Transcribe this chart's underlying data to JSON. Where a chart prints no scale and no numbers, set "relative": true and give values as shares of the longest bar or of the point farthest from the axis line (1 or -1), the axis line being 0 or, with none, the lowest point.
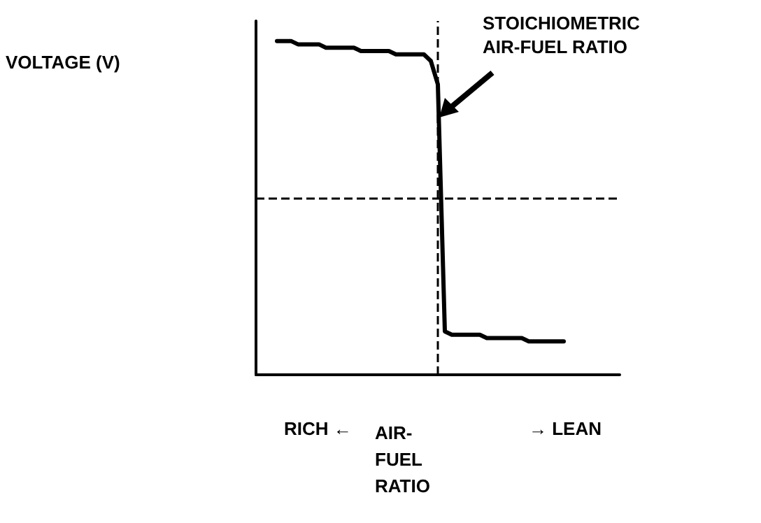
{
  "chart_data": {
    "type": "line",
    "relative": true,
    "xlabel": "AIR- FUEL RATIO",
    "annotations": [
      "STOICHIOMETRIC AIR-FUEL RATIO",
      "RICH ←",
      "→ LEAN",
      "VOLTAGE (V)"
    ],
    "categories": [
      null,
      null,
      null,
      null,
      null,
      null,
      null,
      null,
      null,
      null,
      null,
      null,
      null,
      null,
      null,
      null,
      null,
      null,
      null,
      null,
      null,
      null,
      null,
      null,
      null,
      null,
      null,
      null,
      null,
      null,
      null,
      null,
      null,
      null,
      null,
      null,
      null,
      null,
      null,
      null,
      null,
      null,
      null,
      null,
      null,
      null,
      null,
      null,
      null,
      null,
      null,
      null,
      null
    ],
    "series": [
      {
        "color": "#000000",
        "values": [
          null,
          null,
          null,
          1.0,
          1.0,
          1.0,
          0.99,
          0.99,
          0.99,
          0.99,
          0.98,
          0.98,
          0.98,
          0.98,
          0.98,
          0.97,
          0.97,
          0.97,
          0.97,
          0.97,
          0.96,
          0.96,
          0.96,
          0.96,
          0.96,
          0.94,
          0.87,
          0.13,
          0.12,
          0.12,
          0.12,
          0.12,
          0.12,
          0.11,
          0.11,
          0.11,
          0.11,
          0.11,
          0.11,
          0.1,
          0.1,
          0.1,
          0.1,
          0.1,
          0.1,
          null,
          null,
          null,
          null,
          null,
          null,
          null,
          null
        ]
      }
    ],
    "ref_lines": [
      {
        "axis": "y",
        "value": 0.525,
        "line_style": "dashed",
        "color": "#000000"
      }
    ],
    "marker": "none",
    "line_style": "solid",
    "grid": false
  }
}
